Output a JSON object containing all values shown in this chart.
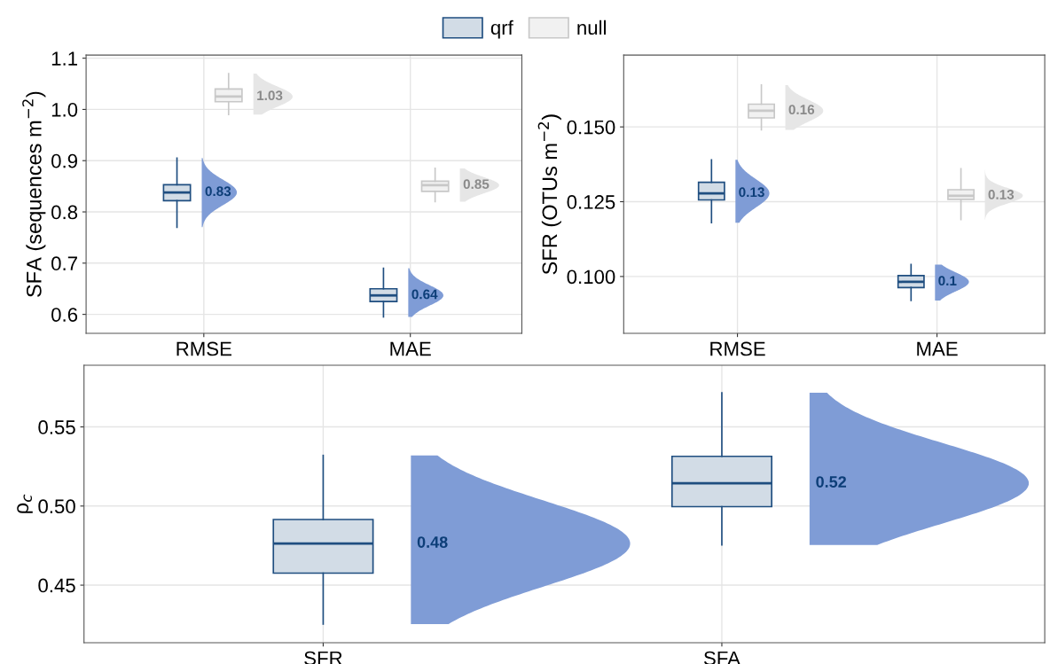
{
  "chart_data": [
    {
      "type": "box",
      "ylabel": "SFA (sequences m$^{−2}$)",
      "categories": [
        "RMSE",
        "MAE"
      ],
      "ylim": [
        0.563,
        1.106
      ],
      "yticks": [
        {
          "value": 0.6,
          "label": "0.6"
        },
        {
          "value": 0.7,
          "label": "0.7"
        },
        {
          "value": 0.8,
          "label": "0.8"
        },
        {
          "value": 0.9,
          "label": "0.9"
        },
        {
          "value": 1.0,
          "label": "1.0"
        },
        {
          "value": 1.1,
          "label": "1.1"
        }
      ],
      "grid": true,
      "legend": "top",
      "series": [
        {
          "name": "qrf",
          "color": "#1f4e80",
          "value_labels": [
            "0.83",
            "0.64"
          ],
          "boxes": [
            {
              "low": 0.77,
              "q1": 0.822,
              "median": 0.838,
              "q3": 0.853,
              "high": 0.905
            },
            {
              "low": 0.595,
              "q1": 0.625,
              "median": 0.637,
              "q3": 0.65,
              "high": 0.69
            }
          ]
        },
        {
          "name": "null",
          "color": "#c8c8c8",
          "value_labels": [
            "1.03",
            "0.85"
          ],
          "boxes": [
            {
              "low": 0.99,
              "q1": 1.015,
              "median": 1.025,
              "q3": 1.04,
              "high": 1.07
            },
            {
              "low": 0.82,
              "q1": 0.84,
              "median": 0.852,
              "q3": 0.86,
              "high": 0.885
            }
          ]
        }
      ]
    },
    {
      "type": "box",
      "ylabel": "SFR (OTUs m$^{−2}$)",
      "categories": [
        "RMSE",
        "MAE"
      ],
      "ylim": [
        0.081,
        0.174
      ],
      "yticks": [
        {
          "value": 0.1,
          "label": "0.100"
        },
        {
          "value": 0.125,
          "label": "0.125"
        },
        {
          "value": 0.15,
          "label": "0.150"
        }
      ],
      "grid": true,
      "series": [
        {
          "color": "#1f4e80",
          "value_labels": [
            "0.13",
            "0.1"
          ],
          "boxes": [
            {
              "low": 0.118,
              "q1": 0.1256,
              "median": 0.1278,
              "q3": 0.1315,
              "high": 0.139
            },
            {
              "low": 0.092,
              "q1": 0.0963,
              "median": 0.0982,
              "q3": 0.1003,
              "high": 0.104
            }
          ]
        },
        {
          "color": "#c8c8c8",
          "value_labels": [
            "0.16",
            "0.13"
          ],
          "boxes": [
            {
              "low": 0.149,
              "q1": 0.153,
              "median": 0.1554,
              "q3": 0.1576,
              "high": 0.164
            },
            {
              "low": 0.119,
              "q1": 0.1258,
              "median": 0.127,
              "q3": 0.129,
              "high": 0.136
            }
          ]
        }
      ]
    },
    {
      "type": "box",
      "ylabel": "ρ$_{c}$",
      "categories": [
        "SFR",
        "SFA"
      ],
      "ylim": [
        0.4136,
        0.589
      ],
      "yticks": [
        {
          "value": 0.45,
          "label": "0.45"
        },
        {
          "value": 0.5,
          "label": "0.50"
        },
        {
          "value": 0.55,
          "label": "0.55"
        }
      ],
      "grid": true,
      "series": [
        {
          "color": "#1f4e80",
          "value_labels": [
            "0.48",
            "0.52"
          ],
          "boxes": [
            {
              "low": 0.4254,
              "q1": 0.4576,
              "median": 0.4763,
              "q3": 0.4915,
              "high": 0.532
            },
            {
              "low": 0.4754,
              "q1": 0.4996,
              "median": 0.5144,
              "q3": 0.5314,
              "high": 0.5716
            }
          ]
        }
      ]
    }
  ]
}
